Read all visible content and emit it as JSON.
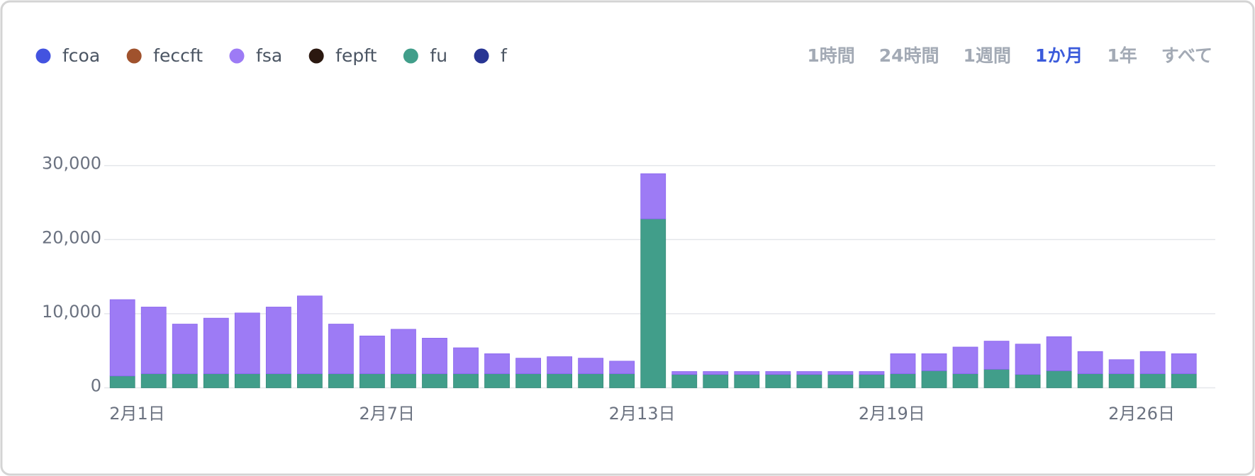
{
  "chart_data": {
    "type": "bar",
    "stacked": true,
    "categories": [
      "2月1日",
      null,
      null,
      null,
      null,
      null,
      null,
      null,
      "2月7日",
      null,
      null,
      null,
      null,
      null,
      null,
      null,
      "2月13日",
      null,
      null,
      null,
      null,
      null,
      null,
      null,
      "2月19日",
      null,
      null,
      null,
      null,
      null,
      null,
      null,
      "2月26日",
      null,
      null
    ],
    "series": [
      {
        "name": "fcoa",
        "color": "#4353e0"
      },
      {
        "name": "feccft",
        "color": "#a0522d"
      },
      {
        "name": "fsa",
        "color": "#9d7bf5",
        "values": [
          10300,
          9000,
          6700,
          7500,
          8200,
          9000,
          10500,
          6700,
          5100,
          6000,
          4800,
          3500,
          2700,
          2100,
          2300,
          2100,
          1700,
          6100,
          400,
          400,
          400,
          400,
          400,
          400,
          400,
          2700,
          2300,
          3600,
          3800,
          4100,
          4600,
          3000,
          1900,
          3000,
          2700
        ]
      },
      {
        "name": "fepft",
        "color": "#2b1810"
      },
      {
        "name": "fu",
        "color": "#419e8a",
        "values": [
          1600,
          1900,
          1900,
          1900,
          1900,
          1900,
          1900,
          1900,
          1900,
          1900,
          1900,
          1900,
          1900,
          1900,
          1900,
          1900,
          1900,
          22800,
          1800,
          1800,
          1800,
          1800,
          1800,
          1800,
          1800,
          1900,
          2300,
          1900,
          2500,
          1800,
          2300,
          1900,
          1900,
          1900,
          1900
        ]
      },
      {
        "name": "f",
        "color": "#283593"
      }
    ],
    "ylim": [
      0,
      30000
    ],
    "yticks": [
      0,
      {
        "value": 10000,
        "label": "10,000"
      },
      {
        "value": 20000,
        "label": "20,000"
      },
      {
        "value": 30000,
        "label": "30,000"
      }
    ],
    "grid": true
  },
  "range_options": [
    {
      "label": "1時間",
      "active": false
    },
    {
      "label": "24時間",
      "active": false
    },
    {
      "label": "1週間",
      "active": false
    },
    {
      "label": "1か月",
      "active": true
    },
    {
      "label": "1年",
      "active": false
    },
    {
      "label": "すべて",
      "active": false
    }
  ]
}
